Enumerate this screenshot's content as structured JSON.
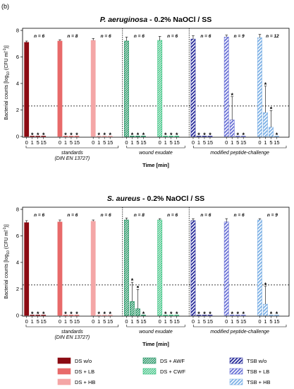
{
  "panel_label": "(b)",
  "legend": [
    {
      "label": "DS w/o",
      "series": "ds_wo"
    },
    {
      "label": "DS + AWF",
      "series": "ds_awf"
    },
    {
      "label": "TSB w/o",
      "series": "tsb_wo"
    },
    {
      "label": "DS + LB",
      "series": "ds_lb"
    },
    {
      "label": "DS + CWF",
      "series": "ds_cwf"
    },
    {
      "label": "TSB + LB",
      "series": "tsb_lb"
    },
    {
      "label": "DS + HB",
      "series": "ds_hb"
    },
    {
      "label": "TSB + HB",
      "series": "tsb_hb"
    }
  ],
  "styles": {
    "ds_wo": {
      "color": "#8b0a12",
      "hatch": "none"
    },
    "ds_lb": {
      "color": "#e86a6a",
      "hatch": "none"
    },
    "ds_hb": {
      "color": "#f4a6a6",
      "hatch": "none"
    },
    "ds_awf": {
      "color": "#0f8a55",
      "hatch": "dense"
    },
    "ds_cwf": {
      "color": "#2fbf7a",
      "hatch": "dense"
    },
    "tsb_wo": {
      "color": "#2b2f9c",
      "hatch": "diag"
    },
    "tsb_lb": {
      "color": "#6a72d6",
      "hatch": "diag"
    },
    "tsb_hb": {
      "color": "#7fb2e6",
      "hatch": "diag"
    }
  },
  "chart_data": [
    {
      "type": "bar",
      "title_bold": "P. aeruginosa",
      "title_rest": " - 0.2% NaOCl / SS",
      "ylabel": "Bacterial counts [log10 (CFU ml-1)]",
      "xlabel": "Time [min]",
      "ylim": [
        0,
        8
      ],
      "yticks": [
        "0",
        "2",
        "4",
        "6",
        "8"
      ],
      "detection_limit": 2.3,
      "time_points": [
        "0",
        "1",
        "5",
        "15"
      ],
      "group_labels": [
        "standards",
        "(DIN EN 13727)",
        "wound exudate",
        "modified peptide-challenge"
      ],
      "series": [
        {
          "name": "DS w/o",
          "key": "ds_wo",
          "n": "n = 6",
          "values": [
            7.1,
            0,
            0,
            0
          ],
          "errors": [
            0.1,
            0,
            0,
            0
          ],
          "stars": [
            "",
            "*",
            "*",
            "*"
          ]
        },
        {
          "name": "DS + LB",
          "key": "ds_lb",
          "n": "n = 8",
          "values": [
            7.2,
            0,
            0,
            0
          ],
          "errors": [
            0.1,
            0,
            0,
            0
          ],
          "stars": [
            "",
            "*",
            "*",
            "*"
          ]
        },
        {
          "name": "DS + HB",
          "key": "ds_hb",
          "n": "n = 6",
          "values": [
            7.25,
            0,
            0,
            0
          ],
          "errors": [
            0.15,
            0,
            0,
            0
          ],
          "stars": [
            "",
            "*",
            "*",
            "*"
          ]
        },
        {
          "name": "DS + AWF",
          "key": "ds_awf",
          "n": "n = 6",
          "values": [
            7.2,
            0,
            0,
            0
          ],
          "errors": [
            0.3,
            0,
            0,
            0
          ],
          "stars": [
            "",
            "*",
            "*",
            "*"
          ]
        },
        {
          "name": "DS + CWF",
          "key": "ds_cwf",
          "n": "n = 6",
          "values": [
            7.25,
            0,
            0,
            0
          ],
          "errors": [
            0.3,
            0,
            0,
            0
          ],
          "stars": [
            "",
            "*",
            "*",
            "*"
          ]
        },
        {
          "name": "TSB w/o",
          "key": "tsb_wo",
          "n": "n = 6",
          "values": [
            7.35,
            0,
            0,
            0
          ],
          "errors": [
            0.25,
            0,
            0,
            0
          ],
          "stars": [
            "",
            "*",
            "*",
            "*"
          ]
        },
        {
          "name": "TSB + LB",
          "key": "tsb_lb",
          "n": "n = 9",
          "values": [
            7.5,
            1.25,
            0,
            0
          ],
          "errors": [
            0.15,
            1.75,
            0,
            0
          ],
          "stars": [
            "",
            "*",
            "*",
            "*"
          ]
        },
        {
          "name": "TSB + HB",
          "key": "tsb_hb",
          "n": "n = 12",
          "values": [
            7.45,
            1.8,
            0.7,
            0
          ],
          "errors": [
            0.25,
            2.0,
            1.25,
            0
          ],
          "stars": [
            "",
            "*",
            "*",
            "*"
          ]
        }
      ]
    },
    {
      "type": "bar",
      "title_bold": "S. aureus",
      "title_rest": " - 0.2% NaOCl / SS",
      "ylabel": "Bacterial counts [log10 (CFU ml-1)]",
      "xlabel": "Time [min]",
      "ylim": [
        0,
        8
      ],
      "yticks": [
        "0",
        "2",
        "4",
        "6",
        "8"
      ],
      "detection_limit": 2.3,
      "time_points": [
        "0",
        "1",
        "5",
        "15"
      ],
      "group_labels": [
        "standards",
        "(DIN EN 13727)",
        "wound exudate",
        "modified peptide-challenge"
      ],
      "series": [
        {
          "name": "DS w/o",
          "key": "ds_wo",
          "n": "n = 6",
          "values": [
            7.0,
            0,
            0,
            0
          ],
          "errors": [
            0.15,
            0,
            0,
            0
          ],
          "stars": [
            "",
            "*",
            "*",
            "*"
          ]
        },
        {
          "name": "DS + LB",
          "key": "ds_lb",
          "n": "n = 6",
          "values": [
            7.05,
            0,
            0,
            0
          ],
          "errors": [
            0.15,
            0,
            0,
            0
          ],
          "stars": [
            "",
            "*",
            "*",
            "*"
          ]
        },
        {
          "name": "DS + HB",
          "key": "ds_hb",
          "n": "n = 6",
          "values": [
            7.1,
            0,
            0,
            0
          ],
          "errors": [
            0.1,
            0,
            0,
            0
          ],
          "stars": [
            "",
            "*",
            "*",
            "*"
          ]
        },
        {
          "name": "DS + AWF",
          "key": "ds_awf",
          "n": "n = 8",
          "values": [
            7.2,
            1.05,
            0.5,
            0
          ],
          "errors": [
            0.15,
            1.45,
            1.45,
            0
          ],
          "stars": [
            "",
            "*",
            "*",
            "*"
          ]
        },
        {
          "name": "DS + CWF",
          "key": "ds_cwf",
          "n": "n = 6",
          "values": [
            7.2,
            0,
            0,
            0
          ],
          "errors": [
            0.1,
            0,
            0,
            0
          ],
          "stars": [
            "",
            "*",
            "*",
            "*"
          ]
        },
        {
          "name": "TSB w/o",
          "key": "tsb_wo",
          "n": "n = 6",
          "values": [
            7.15,
            0,
            0,
            0
          ],
          "errors": [
            0.15,
            0,
            0,
            0
          ],
          "stars": [
            "",
            "*",
            "*",
            "*"
          ]
        },
        {
          "name": "TSB + LB",
          "key": "tsb_lb",
          "n": "n = 6",
          "values": [
            7.05,
            0,
            0,
            0
          ],
          "errors": [
            0.25,
            0,
            0,
            0
          ],
          "stars": [
            "",
            "*",
            "*",
            "*"
          ]
        },
        {
          "name": "TSB + HB",
          "key": "tsb_hb",
          "n": "n = 9",
          "values": [
            7.2,
            0.85,
            0,
            0
          ],
          "errors": [
            0.1,
            1.35,
            0,
            0
          ],
          "stars": [
            "",
            "*",
            "*",
            "*"
          ]
        }
      ]
    }
  ]
}
